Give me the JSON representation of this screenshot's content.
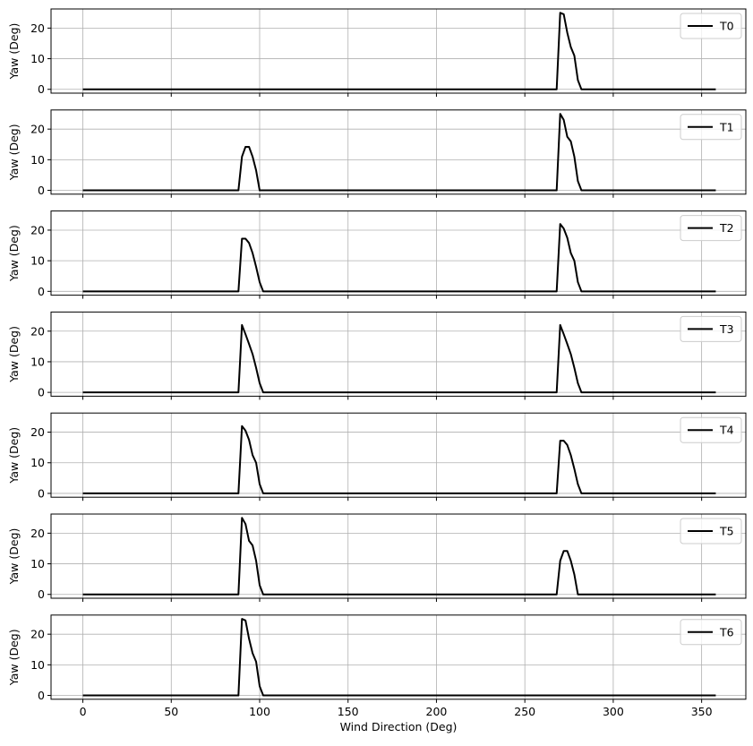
{
  "chart_data": {
    "type": "line",
    "shared_x": true,
    "x_axis": {
      "label": "Wind Direction (Deg)",
      "lim": [
        -18,
        375
      ],
      "ticks": [
        0,
        50,
        100,
        150,
        200,
        250,
        300,
        350
      ],
      "tick_labels": [
        "0",
        "50",
        "100",
        "150",
        "200",
        "250",
        "300",
        "350"
      ]
    },
    "y_axis": {
      "label": "Yaw (Deg)",
      "lim": [
        -1.25,
        26.25
      ],
      "ticks": [
        0,
        10,
        20
      ],
      "tick_labels": [
        "0",
        "10",
        "20"
      ]
    },
    "grid": true,
    "legend_position": "upper right",
    "line_color": "#000000",
    "subplots": [
      {
        "legend": "T0",
        "x": [
          0,
          268,
          270,
          272,
          274,
          276,
          278,
          280,
          282,
          358
        ],
        "y": [
          0,
          0,
          25,
          24.5,
          18.5,
          13.8,
          11,
          3,
          0,
          0
        ]
      },
      {
        "legend": "T1",
        "x": [
          0,
          88,
          90,
          92,
          94,
          96,
          98,
          100,
          268,
          270,
          272,
          274,
          276,
          278,
          280,
          282,
          358
        ],
        "y": [
          0,
          0,
          11,
          14.2,
          14.2,
          11,
          6.5,
          0,
          0,
          25,
          23,
          17.5,
          16,
          11,
          3,
          0,
          0
        ]
      },
      {
        "legend": "T2",
        "x": [
          0,
          88,
          90,
          92,
          94,
          96,
          98,
          100,
          102,
          268,
          270,
          272,
          274,
          276,
          278,
          280,
          282,
          358
        ],
        "y": [
          0,
          0,
          17.2,
          17.2,
          15.8,
          12.5,
          8,
          3,
          0,
          0,
          22,
          20.5,
          17.5,
          12.5,
          10,
          3,
          0,
          0
        ]
      },
      {
        "legend": "T3",
        "x": [
          0,
          88,
          90,
          92,
          94,
          96,
          98,
          100,
          102,
          268,
          270,
          272,
          274,
          276,
          278,
          280,
          282,
          358
        ],
        "y": [
          0,
          0,
          22,
          19,
          15.8,
          12.5,
          8,
          3,
          0,
          0,
          22,
          19,
          15.8,
          12.5,
          8,
          3,
          0,
          0
        ]
      },
      {
        "legend": "T4",
        "x": [
          0,
          88,
          90,
          92,
          94,
          96,
          98,
          100,
          102,
          268,
          270,
          272,
          274,
          276,
          278,
          280,
          282,
          358
        ],
        "y": [
          0,
          0,
          22,
          20.5,
          17.5,
          12.5,
          10,
          3,
          0,
          0,
          17.2,
          17.2,
          15.8,
          12.5,
          8,
          3,
          0,
          0
        ]
      },
      {
        "legend": "T5",
        "x": [
          0,
          88,
          90,
          92,
          94,
          96,
          98,
          100,
          102,
          268,
          270,
          272,
          274,
          276,
          278,
          280,
          358
        ],
        "y": [
          0,
          0,
          25,
          23,
          17.5,
          16,
          11,
          3,
          0,
          0,
          11,
          14.2,
          14.2,
          11,
          6.5,
          0,
          0
        ]
      },
      {
        "legend": "T6",
        "x": [
          0,
          88,
          90,
          92,
          94,
          96,
          98,
          100,
          102,
          358
        ],
        "y": [
          0,
          0,
          25,
          24.5,
          18.5,
          13.8,
          11,
          3,
          0,
          0
        ]
      }
    ]
  }
}
